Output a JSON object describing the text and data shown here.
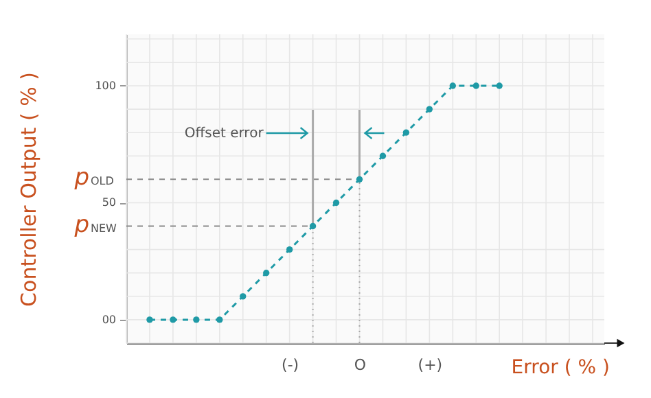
{
  "chart_data": {
    "type": "line",
    "xlabel": "Error ( % )",
    "ylabel": "Controller Output ( % )",
    "categories": [
      null,
      null,
      null,
      null,
      null,
      null,
      "(-)",
      null,
      null,
      "O",
      null,
      null,
      "(+)",
      null,
      null,
      null,
      null,
      null,
      null,
      null
    ],
    "series": [
      {
        "color": "#1f9aa6",
        "values": [
          0,
          0,
          0,
          0,
          10,
          20,
          30,
          40,
          50,
          60,
          70,
          80,
          90,
          100,
          100,
          100,
          null,
          null,
          null,
          null
        ]
      }
    ],
    "ylim": [
      -10,
      122
    ],
    "yticks": [
      {
        "value": 0,
        "label": "00"
      },
      50,
      100
    ],
    "ref_lines": [
      {
        "axis": "y",
        "value": 60,
        "label": "p$_{OLD}$",
        "line_style": "dashed"
      },
      {
        "axis": "y",
        "value": 40,
        "label": "p$_{NEW}$",
        "line_style": "dashed"
      }
    ],
    "annotations": [
      "Offset error"
    ],
    "grid": true,
    "marker": "circle",
    "line_style": "dashed"
  }
}
